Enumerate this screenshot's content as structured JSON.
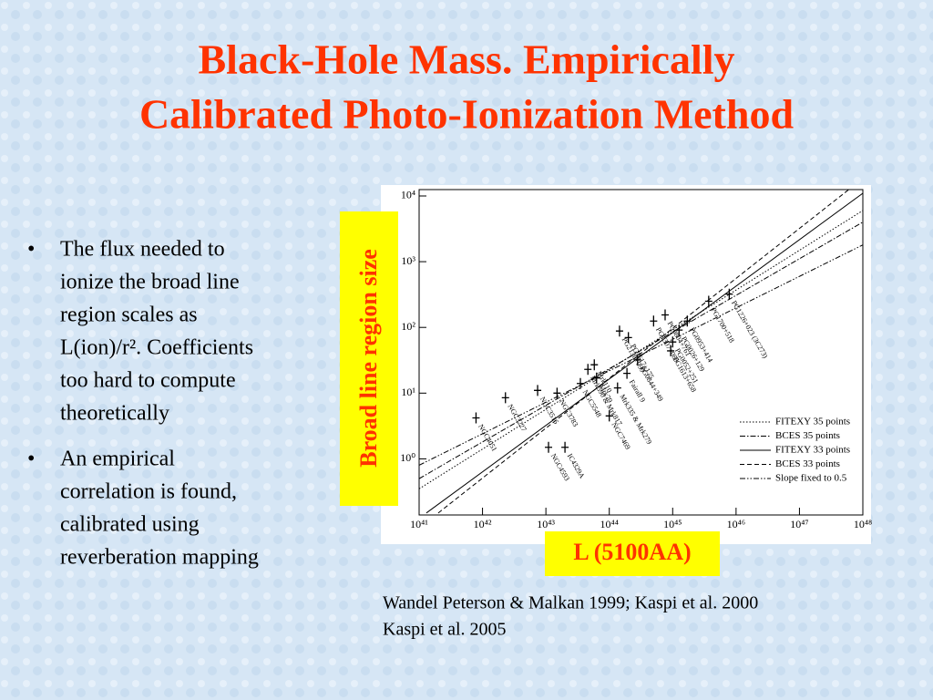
{
  "title_lines": [
    "Black-Hole Mass. Empirically",
    "Calibrated Photo-Ionization Method"
  ],
  "bullets": [
    {
      "lines": [
        "The flux needed to",
        "ionize the broad line",
        "region scales as",
        "L(ion)/r². Coefficients",
        "too hard to compute",
        "theoretically"
      ]
    },
    {
      "lines": [
        "An empirical",
        "correlation is found,",
        "calibrated using",
        "reverberation mapping"
      ]
    }
  ],
  "citations": [
    "Wandel Peterson & Malkan 1999; Kaspi et al. 2000",
    "Kaspi et al. 2005"
  ],
  "chart_data": {
    "type": "scatter",
    "xlabel": "L (5100AA)",
    "ylabel": "Broad line region size",
    "xscale": "log",
    "yscale": "log",
    "xlim": [
      1e+41,
      1e+48
    ],
    "ylim": [
      0.14,
      12500
    ],
    "xticks": [
      {
        "value": 1e+41,
        "label": "10⁴¹"
      },
      {
        "value": 1e+42,
        "label": "10⁴²"
      },
      {
        "value": 1e+43,
        "label": "10⁴³"
      },
      {
        "value": 1e+44,
        "label": "10⁴⁴"
      },
      {
        "value": 1e+45,
        "label": "10⁴⁵"
      },
      {
        "value": 1e+46,
        "label": "10⁴⁶"
      },
      {
        "value": 1e+47,
        "label": "10⁴⁷"
      },
      {
        "value": 1e+48,
        "label": "10⁴⁸"
      }
    ],
    "yticks": [
      {
        "value": 1,
        "label": "10⁰"
      },
      {
        "value": 10,
        "label": "10¹"
      },
      {
        "value": 100,
        "label": "10²"
      },
      {
        "value": 1000,
        "label": "10³"
      },
      {
        "value": 10000,
        "label": "10⁴"
      }
    ],
    "points": {
      "names": [
        "NGC4051",
        "NGC3227",
        "NGC3516",
        "NGC3783",
        "NGC4593",
        "IC4329A",
        "NGC5548",
        "Mrk79",
        "NGC7469",
        "Mrk335 & Mrk279",
        "Mrk110",
        "Mrk590 & Mrk817",
        "Fairall 9",
        "PG0844+349",
        "PG1617+175",
        "PG2130+099",
        "PG1307+085",
        "PG0804+761",
        "PG1613+658",
        "PG0052+251",
        "PG0026+129",
        "PG0953+414",
        "PG1700+518",
        "PG1226+023 (3C273)"
      ],
      "x": [
        7.9e+41,
        2.3e+42,
        7.4e+42,
        1.5e+43,
        1.1e+43,
        2e+43,
        3.5e+43,
        6.3e+43,
        1e+44,
        1.35e+44,
        5.8e+43,
        4.6e+43,
        1.9e+44,
        2.8e+44,
        2e+44,
        1.45e+44,
        5e+44,
        7.6e+44,
        9.3e+44,
        1e+45,
        1.26e+45,
        1.7e+45,
        3.7e+45,
        7.8e+45
      ],
      "y": [
        4.2,
        8.5,
        11,
        10,
        1.5,
        1.5,
        14,
        17,
        4.5,
        12,
        27,
        23,
        20,
        32,
        70,
        88,
        125,
        155,
        44,
        60,
        91,
        125,
        250,
        320
      ],
      "color": "#000000"
    },
    "fits": [
      {
        "name": "FITEXY 35 points",
        "dash": "1.5,2",
        "x": [
          1e+41,
          1e+48
        ],
        "y": [
          0.35,
          6000
        ]
      },
      {
        "name": "BCES 35 points",
        "dash": "6,2,1.5,2",
        "x": [
          1e+41,
          1e+48
        ],
        "y": [
          0.5,
          4000
        ]
      },
      {
        "name": "FITEXY 33 points",
        "dash": "",
        "x": [
          1.3e+41,
          1e+48
        ],
        "y": [
          0.15,
          11000
        ]
      },
      {
        "name": "BCES 33 points",
        "dash": "5,3",
        "x": [
          2e+41,
          6e+47
        ],
        "y": [
          0.15,
          12500
        ]
      },
      {
        "name": "Slope fixed to 0.5",
        "dash": "6,2,1.5,2,1.5,2",
        "x": [
          1e+41,
          1e+48
        ],
        "y": [
          0.8,
          1800
        ]
      }
    ]
  }
}
